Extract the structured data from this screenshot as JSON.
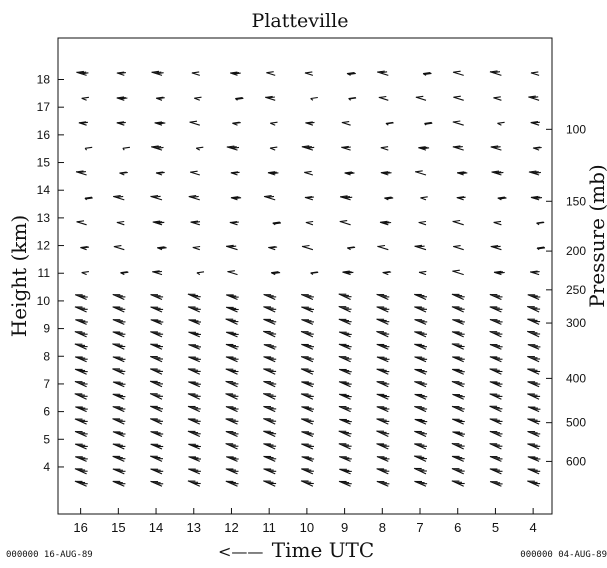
{
  "chart_data": {
    "type": "wind-profile",
    "title": "Platteville",
    "ylabel": "Height (km)",
    "y2label": "Pressure (mb)",
    "xlabel": "Time UTC",
    "x_arrow": "<——",
    "left_footer": "000000 16-AUG-89",
    "right_footer": "000000 04-AUG-89",
    "x_ticks": [
      "16",
      "15",
      "14",
      "13",
      "12",
      "11",
      "10",
      "9",
      "8",
      "7",
      "6",
      "5",
      "4"
    ],
    "y_ticks": [
      "4",
      "5",
      "6",
      "7",
      "8",
      "9",
      "10",
      "11",
      "12",
      "13",
      "14",
      "15",
      "16",
      "17",
      "18"
    ],
    "pressure_ticks": [
      "100",
      "150",
      "200",
      "250",
      "300",
      "400",
      "500",
      "600"
    ],
    "pressure_tick_heights_km": [
      16.2,
      13.6,
      11.8,
      10.4,
      9.2,
      7.2,
      5.6,
      4.2
    ],
    "x_range": [
      16.6,
      3.5
    ],
    "y_range_km": [
      2.3,
      19.5
    ]
  }
}
